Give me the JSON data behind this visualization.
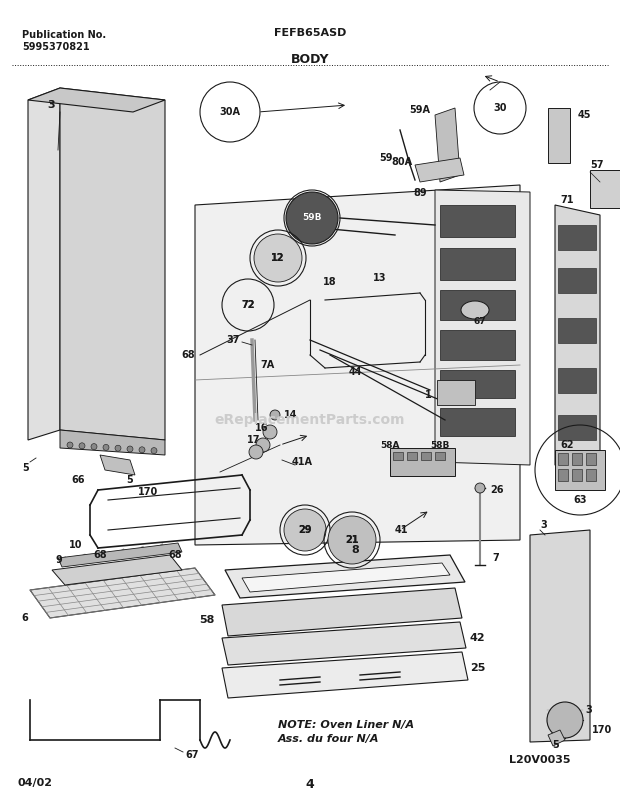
{
  "title": "BODY",
  "model": "FEFB65ASD",
  "pub_no": "Publication No.",
  "pub_num": "5995370821",
  "date": "04/02",
  "page": "4",
  "watermark_code": "L20V0035",
  "note_line1": "NOTE: Oven Liner N/A",
  "note_line2": "Ass. du four N/A",
  "watermark_text": "eReplacementParts.com",
  "bg_color": "#ffffff",
  "lc": "#1a1a1a",
  "figsize": [
    6.2,
    7.94
  ],
  "dpi": 100
}
